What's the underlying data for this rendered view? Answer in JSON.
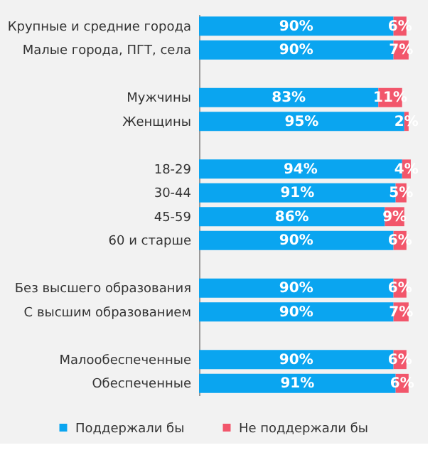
{
  "chart_data": {
    "type": "bar",
    "orientation": "horizontal",
    "stacked": true,
    "categories": [
      "Крупные и средние города",
      "Малые города, ПГТ, села",
      null,
      "Мужчины",
      "Женщины",
      null,
      "18-29",
      "30-44",
      "45-59",
      "60 и старше",
      null,
      "Без высшего образования",
      "С высшим образованием",
      null,
      "Малообеспеченные",
      "Обеспеченные"
    ],
    "xlim": [
      0,
      100
    ],
    "tick_labels": "y",
    "grid": false,
    "legend": "bottom",
    "series": [
      {
        "name": "Поддержали бы",
        "color": "#0aa5f0",
        "values": [
          90,
          90,
          null,
          83,
          95,
          null,
          94,
          91,
          86,
          90,
          null,
          90,
          90,
          null,
          90,
          91
        ],
        "value_labels": [
          "90%",
          "90%",
          null,
          "83%",
          "95%",
          null,
          "94%",
          "91%",
          "86%",
          "90%",
          null,
          "90%",
          "90%",
          null,
          "90%",
          "91%"
        ]
      },
      {
        "name": "Не поддержали бы",
        "color": "#f2566b",
        "values": [
          6,
          7,
          null,
          11,
          2,
          null,
          4,
          5,
          9,
          6,
          null,
          6,
          7,
          null,
          6,
          6
        ],
        "value_labels": [
          "6%",
          "7%",
          null,
          "11%",
          "2%",
          null,
          "4%",
          "5%",
          "9%",
          "6%",
          null,
          "6%",
          "7%",
          null,
          "6%",
          "6%"
        ]
      }
    ]
  }
}
